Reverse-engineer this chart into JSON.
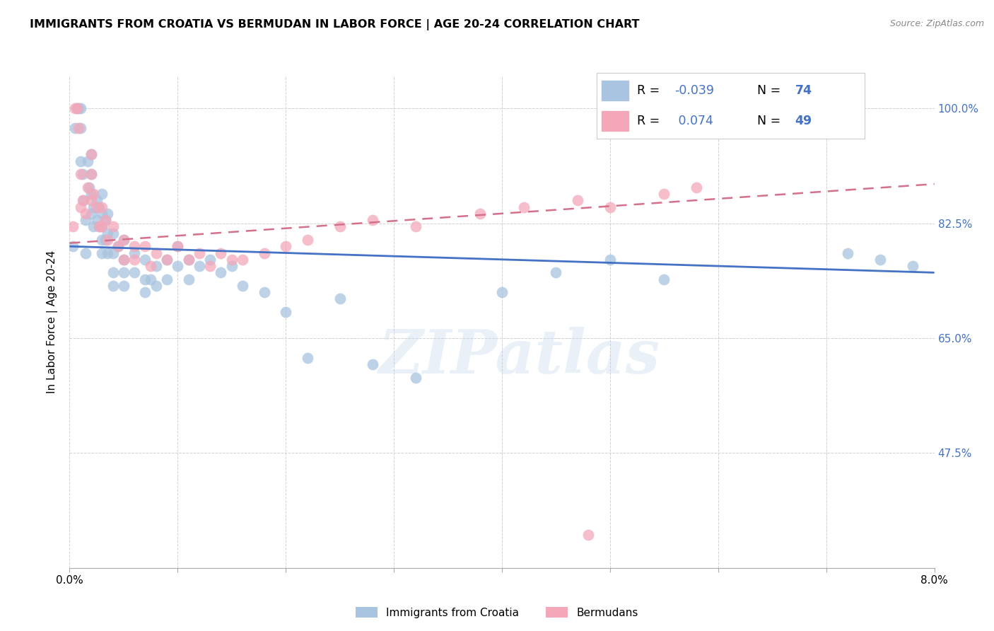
{
  "title": "IMMIGRANTS FROM CROATIA VS BERMUDAN IN LABOR FORCE | AGE 20-24 CORRELATION CHART",
  "source": "Source: ZipAtlas.com",
  "ylabel": "In Labor Force | Age 20-24",
  "xlim": [
    0.0,
    0.08
  ],
  "ylim": [
    0.3,
    1.05
  ],
  "croatia_R": -0.039,
  "croatia_N": 74,
  "bermudan_R": 0.074,
  "bermudan_N": 49,
  "croatia_color": "#a8c4e0",
  "bermudan_color": "#f4a7b9",
  "croatia_line_color": "#4472c4",
  "bermudan_line_color": "#d4708a",
  "watermark": "ZIPatlas",
  "ytick_vals": [
    0.475,
    0.65,
    0.825,
    1.0
  ],
  "ytick_labels": [
    "47.5%",
    "65.0%",
    "82.5%",
    "100.0%"
  ],
  "croatia_x": [
    0.0003,
    0.0005,
    0.0007,
    0.0008,
    0.001,
    0.001,
    0.001,
    0.0012,
    0.0013,
    0.0015,
    0.0015,
    0.0017,
    0.0018,
    0.002,
    0.002,
    0.002,
    0.002,
    0.0022,
    0.0022,
    0.0025,
    0.0025,
    0.0027,
    0.0027,
    0.003,
    0.003,
    0.003,
    0.003,
    0.003,
    0.0033,
    0.0033,
    0.0035,
    0.0035,
    0.0035,
    0.004,
    0.004,
    0.004,
    0.004,
    0.0045,
    0.005,
    0.005,
    0.005,
    0.005,
    0.006,
    0.006,
    0.007,
    0.007,
    0.007,
    0.0075,
    0.008,
    0.008,
    0.009,
    0.009,
    0.01,
    0.01,
    0.011,
    0.011,
    0.012,
    0.013,
    0.014,
    0.015,
    0.016,
    0.018,
    0.02,
    0.022,
    0.025,
    0.028,
    0.032,
    0.04,
    0.045,
    0.05,
    0.055,
    0.072,
    0.075,
    0.078
  ],
  "croatia_y": [
    0.79,
    0.97,
    1.0,
    1.0,
    1.0,
    0.97,
    0.92,
    0.9,
    0.86,
    0.83,
    0.78,
    0.92,
    0.88,
    0.93,
    0.9,
    0.87,
    0.84,
    0.85,
    0.82,
    0.86,
    0.83,
    0.85,
    0.82,
    0.87,
    0.84,
    0.82,
    0.8,
    0.78,
    0.83,
    0.8,
    0.84,
    0.81,
    0.78,
    0.81,
    0.78,
    0.75,
    0.73,
    0.79,
    0.8,
    0.77,
    0.75,
    0.73,
    0.78,
    0.75,
    0.77,
    0.74,
    0.72,
    0.74,
    0.76,
    0.73,
    0.77,
    0.74,
    0.79,
    0.76,
    0.77,
    0.74,
    0.76,
    0.77,
    0.75,
    0.76,
    0.73,
    0.72,
    0.69,
    0.62,
    0.71,
    0.61,
    0.59,
    0.72,
    0.75,
    0.77,
    0.74,
    0.78,
    0.77,
    0.76
  ],
  "bermudan_x": [
    0.0003,
    0.0005,
    0.0007,
    0.0008,
    0.001,
    0.001,
    0.0012,
    0.0015,
    0.0017,
    0.002,
    0.002,
    0.002,
    0.0022,
    0.0025,
    0.0027,
    0.003,
    0.003,
    0.0033,
    0.0035,
    0.004,
    0.0045,
    0.005,
    0.005,
    0.006,
    0.006,
    0.007,
    0.0075,
    0.008,
    0.009,
    0.01,
    0.011,
    0.012,
    0.013,
    0.014,
    0.015,
    0.016,
    0.018,
    0.02,
    0.022,
    0.025,
    0.028,
    0.032,
    0.038,
    0.042,
    0.047,
    0.05,
    0.055,
    0.058,
    0.048
  ],
  "bermudan_y": [
    0.82,
    1.0,
    1.0,
    0.97,
    0.9,
    0.85,
    0.86,
    0.84,
    0.88,
    0.93,
    0.9,
    0.86,
    0.87,
    0.85,
    0.82,
    0.85,
    0.82,
    0.83,
    0.8,
    0.82,
    0.79,
    0.8,
    0.77,
    0.79,
    0.77,
    0.79,
    0.76,
    0.78,
    0.77,
    0.79,
    0.77,
    0.78,
    0.76,
    0.78,
    0.77,
    0.77,
    0.78,
    0.79,
    0.8,
    0.82,
    0.83,
    0.82,
    0.84,
    0.85,
    0.86,
    0.85,
    0.87,
    0.88,
    0.35
  ]
}
